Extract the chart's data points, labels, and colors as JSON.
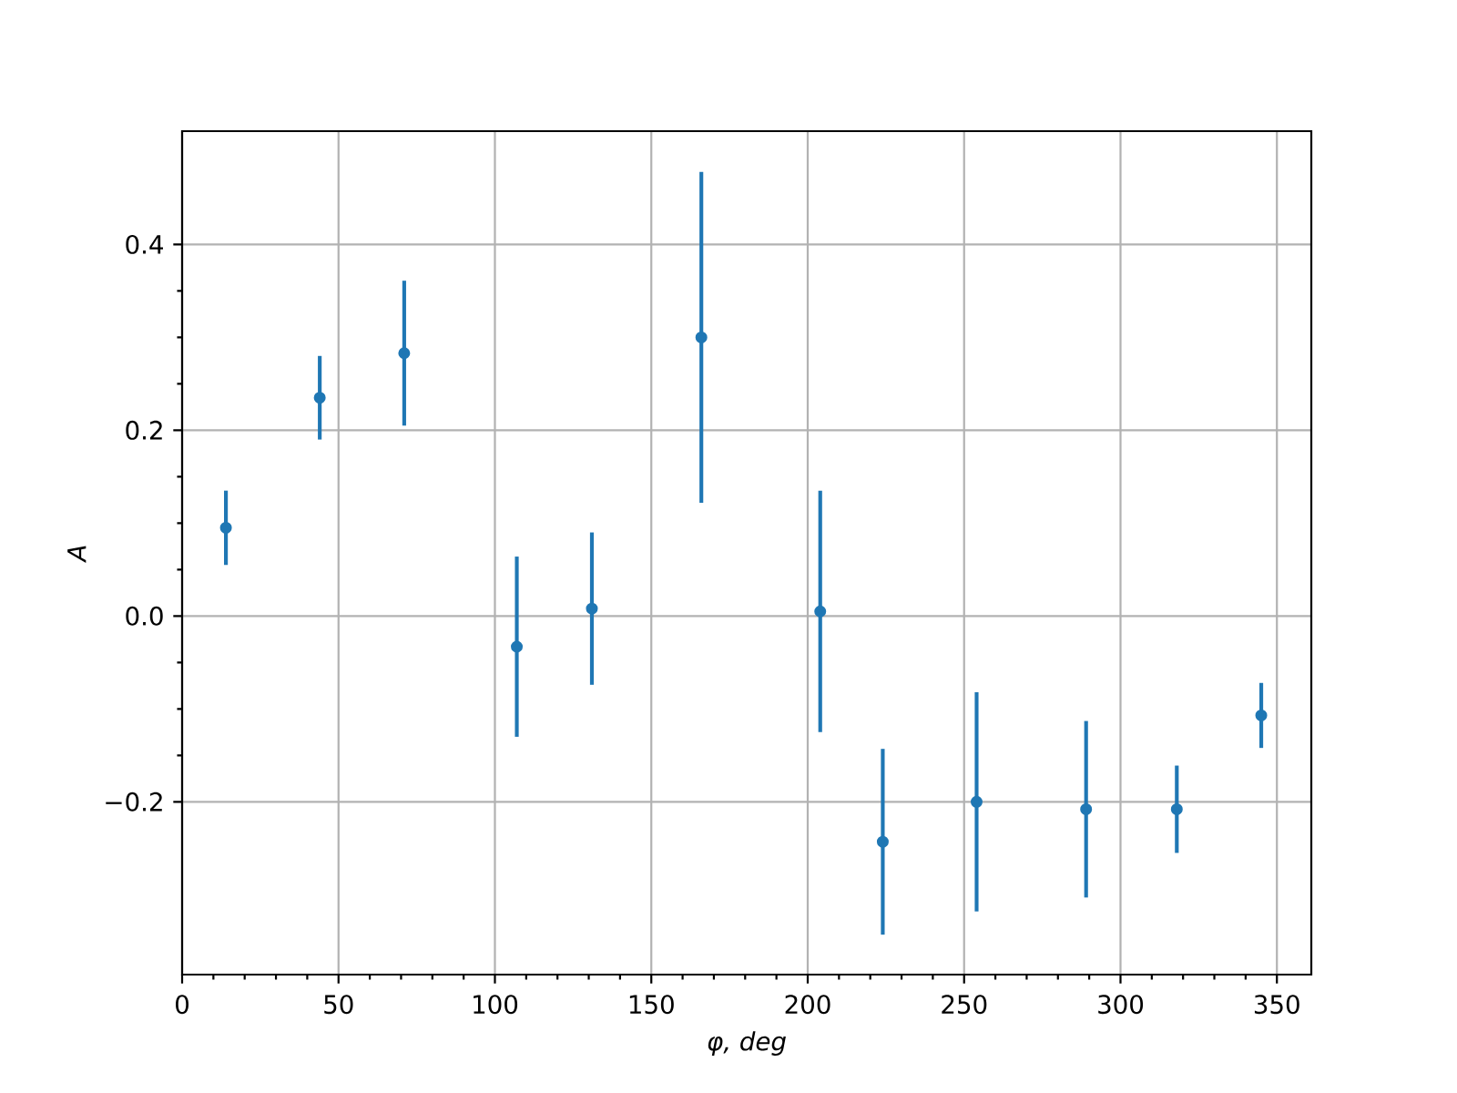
{
  "chart_data": {
    "type": "scatter",
    "xlabel": "φ, deg",
    "ylabel": "A",
    "x": [
      14,
      44,
      71,
      107,
      131,
      166,
      204,
      224,
      254,
      289,
      318,
      345
    ],
    "series": [
      {
        "color": "#1f77b4",
        "values": [
          0.095,
          0.235,
          0.283,
          -0.033,
          0.008,
          0.3,
          0.005,
          -0.243,
          -0.2,
          -0.208,
          -0.208,
          -0.107
        ],
        "errors": [
          0.04,
          0.045,
          0.078,
          0.097,
          0.082,
          0.178,
          0.13,
          0.1,
          0.118,
          0.095,
          0.047,
          0.035
        ]
      }
    ],
    "xlim": [
      0,
      361
    ],
    "ylim": [
      -0.386,
      0.522
    ],
    "xticks": [
      0,
      50,
      100,
      150,
      200,
      250,
      300,
      350
    ],
    "yticks": [
      {
        "value": -0.2,
        "label": "−0.2"
      },
      {
        "value": 0,
        "label": "0.0"
      },
      {
        "value": 0.2,
        "label": "0.2"
      },
      {
        "value": 0.4,
        "label": "0.4"
      }
    ],
    "grid": true,
    "marker": "circle"
  }
}
